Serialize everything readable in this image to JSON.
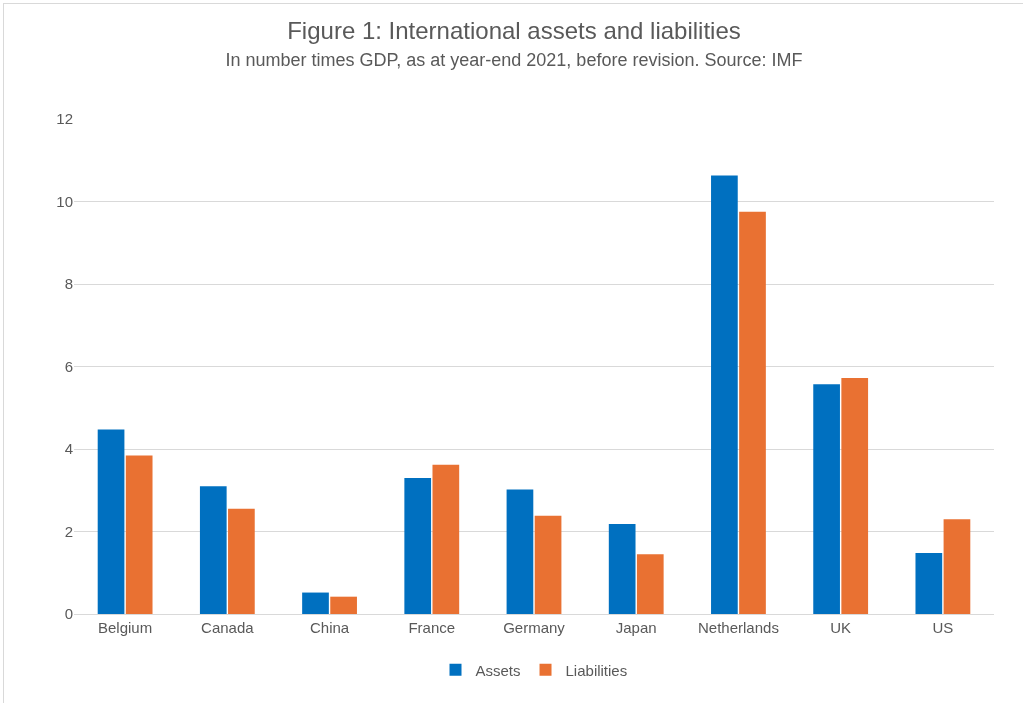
{
  "chart_data": {
    "type": "bar",
    "title": "Figure 1: International assets and liabilities",
    "subtitle": "In number times GDP, as at year-end 2021, before revision. Source: IMF",
    "categories": [
      "Belgium",
      "Canada",
      "China",
      "France",
      "Germany",
      "Japan",
      "Netherlands",
      "UK",
      "US"
    ],
    "series": [
      {
        "name": "Assets",
        "color": "#0070c0",
        "values": [
          4.47,
          3.1,
          0.52,
          3.3,
          3.02,
          2.18,
          10.63,
          5.57,
          1.48
        ]
      },
      {
        "name": "Liabilities",
        "color": "#e97132",
        "values": [
          3.84,
          2.55,
          0.42,
          3.62,
          2.38,
          1.45,
          9.75,
          5.72,
          2.3
        ]
      }
    ],
    "ylim": [
      0,
      12
    ],
    "yticks": [
      0,
      2,
      4,
      6,
      8,
      10,
      12
    ],
    "grid": "y",
    "legend": "bottom"
  }
}
